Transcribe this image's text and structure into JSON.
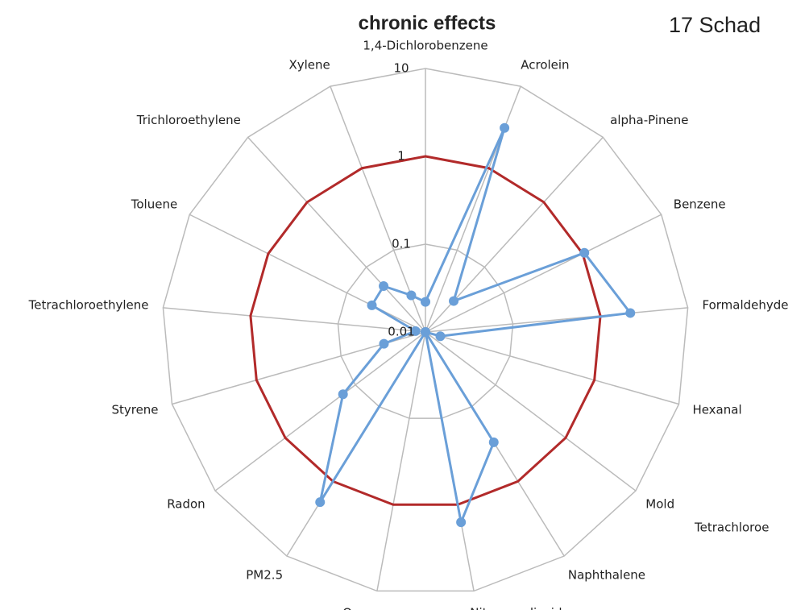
{
  "chart_data": {
    "type": "radar",
    "title": "chronic effects",
    "notes": [
      "17 Schad",
      "Tetrachloroe"
    ],
    "categories": [
      "1,4-Dichlorobenzene",
      "Acrolein",
      "alpha-Pinene",
      "Benzene",
      "Formaldehyde",
      "Hexanal",
      "Mold",
      "Naphthalene",
      "Nitrogen dioxide",
      "Ozone",
      "PM2.5",
      "Radon",
      "Styrene",
      "Tetrachloroethylene",
      "Toluene",
      "Trichloroethylene",
      "Xylene"
    ],
    "series": [
      {
        "color": "#b22a2a",
        "markers": false,
        "values": [
          1,
          1,
          1,
          1,
          1,
          1,
          1,
          1,
          1,
          1,
          1,
          1,
          1,
          1,
          1,
          1,
          1
        ]
      },
      {
        "color": "#6a9fd8",
        "markers": true,
        "values": [
          0.022,
          3.1,
          0.03,
          1.05,
          2.2,
          0.015,
          0.01,
          0.3,
          1.6,
          0.01,
          1.9,
          0.15,
          0.031,
          0.013,
          0.048,
          0.051,
          0.028
        ]
      }
    ],
    "log_scale": true,
    "ylim": [
      0.01,
      10
    ],
    "yticks": [
      0.01,
      0.1,
      1,
      10
    ],
    "grid": true
  }
}
